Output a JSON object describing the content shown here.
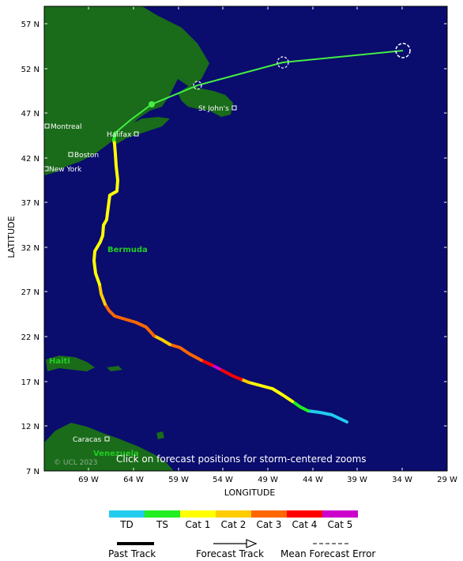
{
  "map": {
    "lat_labels": [
      "57 N",
      "52 N",
      "47 N",
      "42 N",
      "37 N",
      "32 N",
      "27 N",
      "22 N",
      "17 N",
      "12 N",
      "7 N"
    ],
    "lon_labels": [
      "69 W",
      "64 W",
      "59 W",
      "54 W",
      "49 W",
      "44 W",
      "39 W",
      "34 W",
      "29 W"
    ],
    "lat_axis_title": "LATITUDE",
    "lon_axis_title": "LONGITUDE",
    "cities": {
      "montreal": "Montreal",
      "boston": "Boston",
      "new_york": "New York",
      "halifax": "Halifax",
      "st_johns": "St John's",
      "caracas": "Caracas"
    },
    "regions": {
      "bermuda": "Bermuda",
      "haiti": "Haiti",
      "venezuela": "Venezuela"
    },
    "copyright": "© UCL 2023",
    "note": "Click on forecast positions for storm-centered zooms",
    "colors": {
      "ocean": "#0a0c6e",
      "land": "#1a6b1a",
      "td": "#22ccee",
      "ts": "#22ee22",
      "cat1": "#ffff00",
      "cat2": "#ffcc00",
      "cat3": "#ff6600",
      "cat4": "#ff0000",
      "cat5": "#cc00cc",
      "forecast": "#44ee44"
    }
  },
  "legend": {
    "categories": [
      {
        "label": "TD",
        "color": "#22ccee"
      },
      {
        "label": "TS",
        "color": "#22ee22"
      },
      {
        "label": "Cat 1",
        "color": "#ffff00"
      },
      {
        "label": "Cat 2",
        "color": "#ffcc00"
      },
      {
        "label": "Cat 3",
        "color": "#ff6600"
      },
      {
        "label": "Cat 4",
        "color": "#ff0000"
      },
      {
        "label": "Cat 5",
        "color": "#cc00cc"
      }
    ],
    "past_track": "Past Track",
    "forecast_track": "Forecast Track",
    "mean_error": "Mean Forecast Error"
  }
}
